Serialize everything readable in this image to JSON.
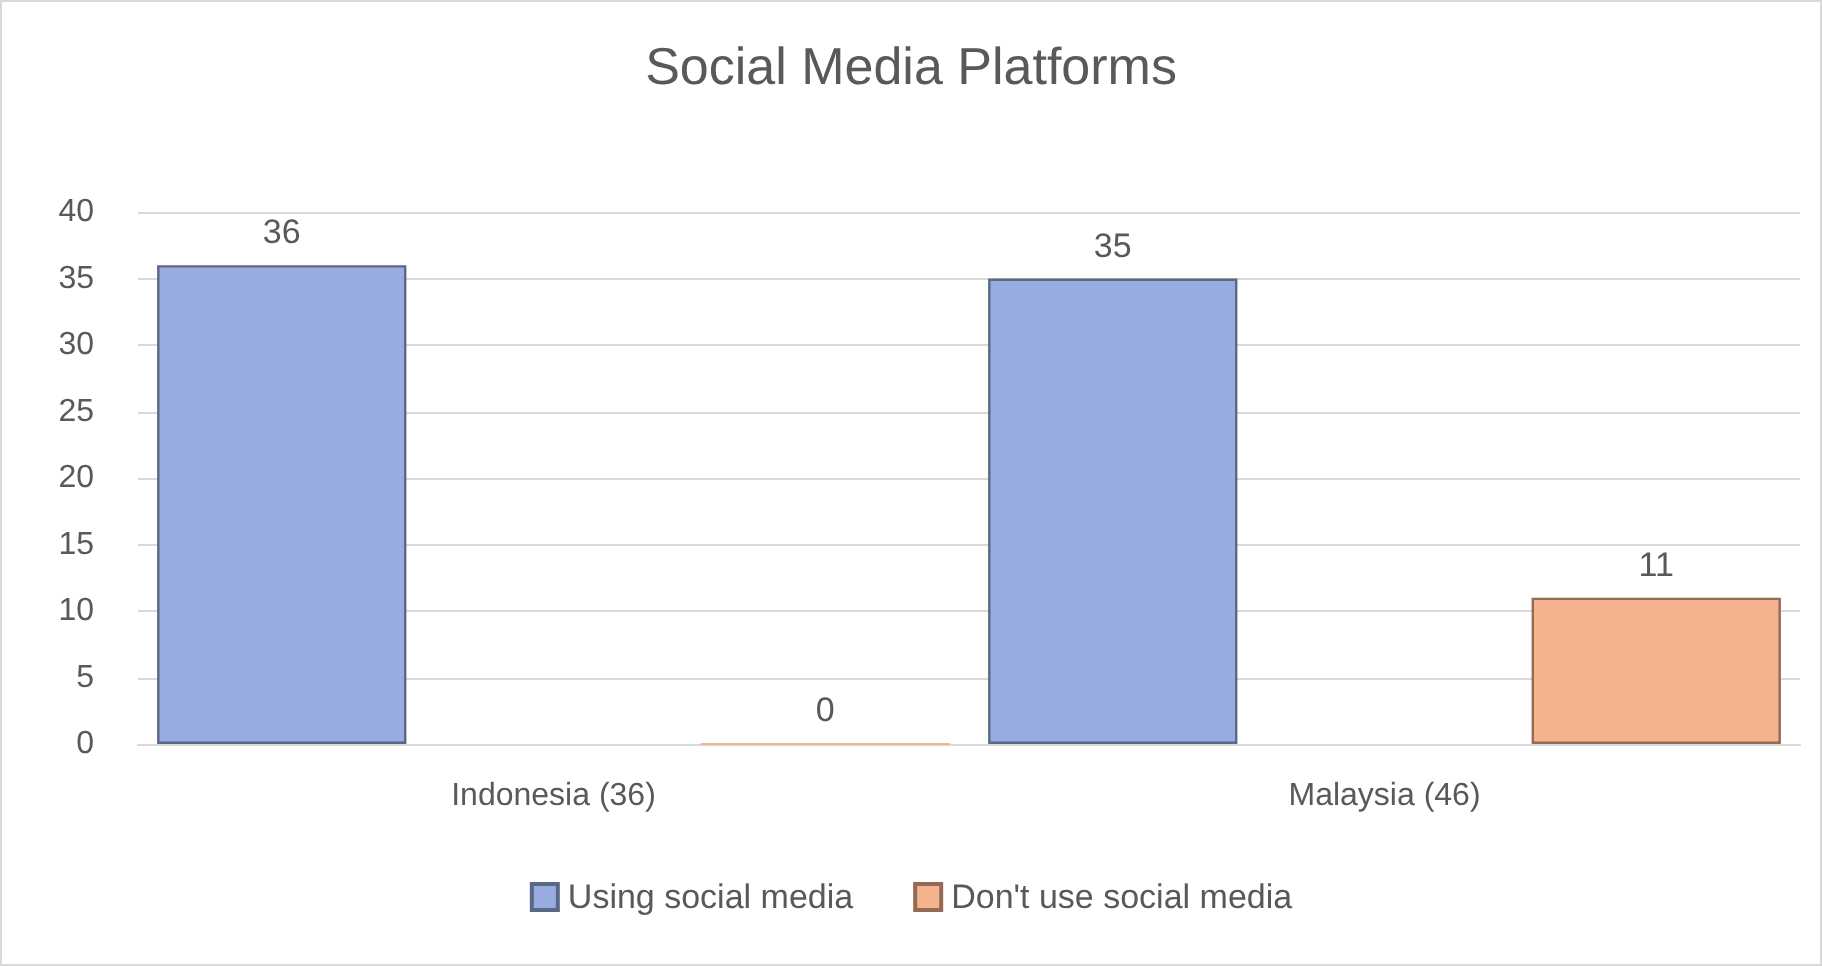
{
  "chart_data": {
    "type": "bar",
    "title": "Social Media Platforms",
    "categories": [
      "Indonesia (36)",
      "Malaysia (46)"
    ],
    "series": [
      {
        "name": "Using social media",
        "color": "#98acdf",
        "values": [
          36,
          35
        ]
      },
      {
        "name": "Don't use social media",
        "color": "#f5b28e",
        "values": [
          0,
          11
        ]
      }
    ],
    "ylim": [
      0,
      40
    ],
    "yticks": [
      0,
      5,
      10,
      15,
      20,
      25,
      30,
      35,
      40
    ],
    "grid": "y",
    "legend": "bottom",
    "data_labels": true
  }
}
